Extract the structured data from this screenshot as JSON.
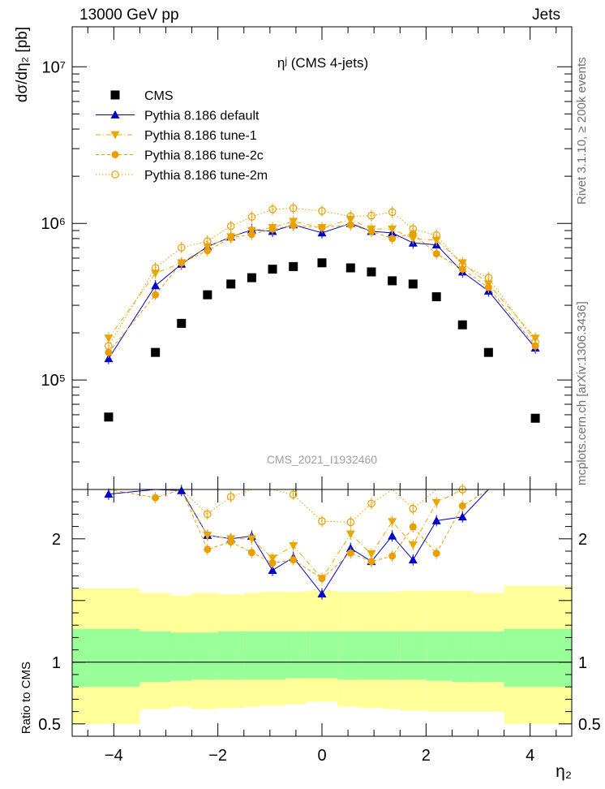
{
  "header": {
    "left": "13000 GeV pp",
    "right": "Jets"
  },
  "side_labels": {
    "rivet": "Rivet 3.1.10, ≥ 200k events",
    "mcplots": "mcplots.cern.ch [arXiv:1306.3436]"
  },
  "chart_data": [
    {
      "type": "scatter",
      "title": "ηʲ (CMS 4-jets)",
      "watermark": "CMS_2021_I1932460",
      "ylabel": "dσ/dη₂ [pb]",
      "yscale": "log",
      "ylim": [
        20000,
        18000000
      ],
      "xlim": [
        -4.8,
        4.8
      ],
      "yticks": [
        {
          "v": 100000,
          "label": "10⁵"
        },
        {
          "v": 1000000,
          "label": "10⁶"
        },
        {
          "v": 10000000,
          "label": "10⁷"
        }
      ],
      "legend_position": "top-left",
      "x": [
        -4.1,
        -3.2,
        -2.7,
        -2.2,
        -1.75,
        -1.35,
        -0.95,
        -0.55,
        0.0,
        0.55,
        0.95,
        1.35,
        1.75,
        2.2,
        2.7,
        3.2,
        4.1
      ],
      "series": [
        {
          "name": "CMS",
          "marker": "square",
          "color": "#000000",
          "values": [
            58000,
            150000,
            230000,
            350000,
            410000,
            450000,
            510000,
            530000,
            560000,
            520000,
            490000,
            430000,
            410000,
            340000,
            225000,
            150000,
            57000
          ]
        },
        {
          "name": "Pythia 8.186 default",
          "marker": "triangle-up",
          "color": "#0000cc",
          "line": "solid",
          "values": [
            137000,
            400000,
            550000,
            710000,
            820000,
            910000,
            890000,
            980000,
            870000,
            1000000,
            890000,
            870000,
            750000,
            730000,
            490000,
            370000,
            160000
          ]
        },
        {
          "name": "Pythia 8.186 tune-1",
          "marker": "triangle-down",
          "color": "#e8a800",
          "line": "dashdot",
          "values": [
            185000,
            480000,
            560000,
            710000,
            820000,
            900000,
            940000,
            1030000,
            940000,
            1060000,
            920000,
            920000,
            800000,
            780000,
            560000,
            410000,
            185000
          ]
        },
        {
          "name": "Pythia 8.186 tune-2c",
          "marker": "circle",
          "color": "#e8a000",
          "line": "dashed",
          "values": [
            150000,
            350000,
            560000,
            670000,
            810000,
            850000,
            920000,
            970000,
            940000,
            980000,
            890000,
            800000,
            860000,
            640000,
            510000,
            390000,
            165000
          ]
        },
        {
          "name": "Pythia 8.186 tune-2m",
          "marker": "circle-open",
          "color": "#e8a000",
          "line": "dotted",
          "values": [
            165000,
            520000,
            700000,
            770000,
            960000,
            1100000,
            1230000,
            1250000,
            1200000,
            1110000,
            1120000,
            1180000,
            920000,
            840000,
            540000,
            450000,
            175000
          ]
        }
      ]
    },
    {
      "type": "band",
      "ylabel": "Ratio to CMS",
      "xlabel": "η₂",
      "ylim": [
        0.4,
        2.4
      ],
      "yticks": [
        {
          "v": 0.5,
          "label": "0.5"
        },
        {
          "v": 1,
          "label": "1"
        },
        {
          "v": 2,
          "label": "2"
        }
      ],
      "xticks": [
        {
          "v": -4,
          "label": "−4"
        },
        {
          "v": -2,
          "label": "−2"
        },
        {
          "v": 0,
          "label": "0"
        },
        {
          "v": 2,
          "label": "2"
        },
        {
          "v": 4,
          "label": "4"
        }
      ],
      "bins": [
        -4.8,
        -3.5,
        -2.9,
        -2.5,
        -2.0,
        -1.5,
        -1.2,
        -0.7,
        -0.3,
        0.3,
        0.7,
        1.2,
        1.5,
        2.0,
        2.5,
        2.9,
        3.5,
        4.8
      ],
      "band_stat_sys": {
        "color": "#99ff99",
        "lo": [
          0.8,
          0.84,
          0.85,
          0.86,
          0.86,
          0.86,
          0.86,
          0.87,
          0.87,
          0.86,
          0.86,
          0.86,
          0.86,
          0.85,
          0.84,
          0.84,
          0.8
        ],
        "hi": [
          1.27,
          1.25,
          1.24,
          1.24,
          1.25,
          1.25,
          1.25,
          1.25,
          1.25,
          1.25,
          1.25,
          1.25,
          1.25,
          1.25,
          1.25,
          1.25,
          1.27
        ]
      },
      "band_total": {
        "color": "#ffff99",
        "lo": [
          0.5,
          0.62,
          0.64,
          0.62,
          0.63,
          0.64,
          0.65,
          0.66,
          0.68,
          0.64,
          0.63,
          0.62,
          0.61,
          0.6,
          0.6,
          0.6,
          0.5
        ],
        "hi": [
          1.6,
          1.56,
          1.54,
          1.56,
          1.55,
          1.56,
          1.57,
          1.57,
          1.58,
          1.57,
          1.57,
          1.57,
          1.58,
          1.58,
          1.58,
          1.56,
          1.62
        ]
      },
      "reference_line": 1
    }
  ]
}
